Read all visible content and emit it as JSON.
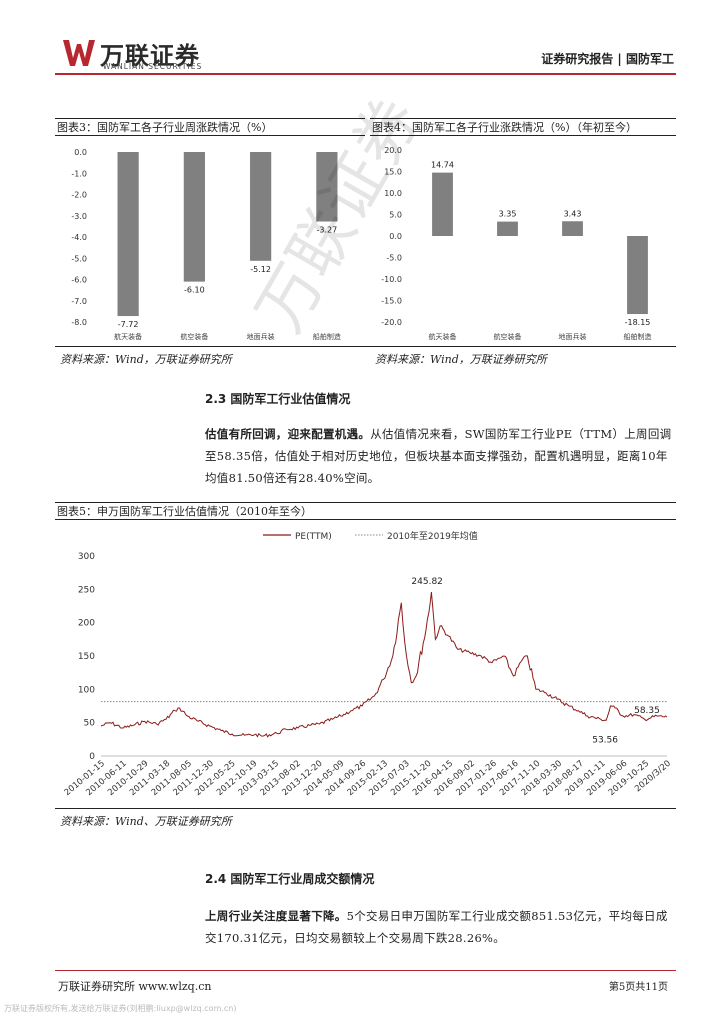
{
  "header": {
    "brand": "万联证券",
    "brand_en": "WANLIAN SECURITIES",
    "report_type": "证券研究报告",
    "sector": "国防军工",
    "accent_color": "#b8262f"
  },
  "figure3": {
    "caption": "图表3：国防军工各子行业周涨跌情况（%）",
    "source": "资料来源：Wind，万联证券研究所",
    "chart_data": {
      "type": "bar",
      "categories": [
        "航天装备",
        "航空装备",
        "地面兵装",
        "船舶制造"
      ],
      "values": [
        -7.72,
        -6.1,
        -5.12,
        -3.27
      ],
      "value_labels": [
        "-7.72",
        "-6.10",
        "-5.12",
        "-3.27"
      ],
      "ylim": [
        -8.0,
        0.0
      ],
      "yticks": [
        "0.0",
        "-1.0",
        "-2.0",
        "-3.0",
        "-4.0",
        "-5.0",
        "-6.0",
        "-7.0",
        "-8.0"
      ],
      "bar_color": "#808080"
    }
  },
  "figure4": {
    "caption": "图表4：国防军工各子行业涨跌情况（%）（年初至今）",
    "source": "资料来源：Wind，万联证券研究所",
    "chart_data": {
      "type": "bar",
      "categories": [
        "航天装备",
        "航空装备",
        "地面兵装",
        "船舶制造"
      ],
      "values": [
        14.74,
        3.35,
        3.43,
        -18.15
      ],
      "value_labels": [
        "14.74",
        "3.35",
        "3.43",
        "-18.15"
      ],
      "ylim": [
        -20.0,
        20.0
      ],
      "yticks": [
        "20.0",
        "15.0",
        "10.0",
        "5.0",
        "0.0",
        "-5.0",
        "-10.0",
        "-15.0",
        "-20.0"
      ],
      "bar_color": "#808080"
    }
  },
  "section23": {
    "title": "2.3 国防军工行业估值情况",
    "lead": "估值有所回调，迎来配置机遇。",
    "body": "从估值情况来看，SW国防军工行业PE（TTM）上周回调至58.35倍，估值处于相对历史地位，但板块基本面支撑强劲，配置机遇明显，距离10年均值81.50倍还有28.40%空间。"
  },
  "figure5": {
    "caption": "图表5：申万国防军工行业估值情况（2010年至今）",
    "source": "资料来源：Wind、万联证券研究所",
    "chart_data": {
      "type": "line",
      "series": [
        {
          "name": "PE(TTM)",
          "color": "#8b1a1a"
        },
        {
          "name": "2010年至2019年均值",
          "color": "#888888"
        }
      ],
      "mean_value": 81.5,
      "ylim": [
        0,
        300
      ],
      "yticks": [
        "0",
        "50",
        "100",
        "150",
        "200",
        "250",
        "300"
      ],
      "x_tick_labels": [
        "2010-01-15",
        "2010-06-11",
        "2010-10-29",
        "2011-03-18",
        "2011-08-05",
        "2011-12-30",
        "2012-05-25",
        "2012-10-19",
        "2013-03-15",
        "2013-08-02",
        "2013-12-20",
        "2014-05-09",
        "2014-09-26",
        "2015-02-13",
        "2015-07-03",
        "2015-11-20",
        "2016-04-15",
        "2016-09-02",
        "2017-01-26",
        "2017-06-16",
        "2017-11-10",
        "2018-03-30",
        "2018-08-17",
        "2019-01-11",
        "2019-06-06",
        "2019-10-25",
        "2020/3/20"
      ],
      "pe_points": [
        [
          "2010-01-15",
          45
        ],
        [
          "2010-03-15",
          50
        ],
        [
          "2010-06-11",
          42
        ],
        [
          "2010-08-15",
          46
        ],
        [
          "2010-10-29",
          52
        ],
        [
          "2011-01-15",
          48
        ],
        [
          "2011-03-18",
          55
        ],
        [
          "2011-05-15",
          68
        ],
        [
          "2011-06-15",
          72
        ],
        [
          "2011-08-05",
          60
        ],
        [
          "2011-10-15",
          52
        ],
        [
          "2011-12-30",
          45
        ],
        [
          "2012-03-15",
          38
        ],
        [
          "2012-05-25",
          33
        ],
        [
          "2012-08-15",
          31
        ],
        [
          "2012-10-19",
          32
        ],
        [
          "2012-12-15",
          30
        ],
        [
          "2013-03-15",
          34
        ],
        [
          "2013-05-15",
          40
        ],
        [
          "2013-08-02",
          42
        ],
        [
          "2013-10-15",
          46
        ],
        [
          "2013-12-20",
          48
        ],
        [
          "2014-03-15",
          55
        ],
        [
          "2014-05-09",
          60
        ],
        [
          "2014-07-15",
          68
        ],
        [
          "2014-09-26",
          75
        ],
        [
          "2014-12-15",
          90
        ],
        [
          "2015-02-13",
          115
        ],
        [
          "2015-04-15",
          150
        ],
        [
          "2015-06-10",
          230
        ],
        [
          "2015-07-03",
          170
        ],
        [
          "2015-08-15",
          110
        ],
        [
          "2015-09-15",
          120
        ],
        [
          "2015-11-20",
          190
        ],
        [
          "2015-12-25",
          245.82
        ],
        [
          "2016-01-20",
          175
        ],
        [
          "2016-02-20",
          195
        ],
        [
          "2016-04-15",
          180
        ],
        [
          "2016-06-15",
          160
        ],
        [
          "2016-09-02",
          155
        ],
        [
          "2016-11-15",
          150
        ],
        [
          "2017-01-26",
          140
        ],
        [
          "2017-04-15",
          150
        ],
        [
          "2017-06-16",
          120
        ],
        [
          "2017-08-15",
          145
        ],
        [
          "2017-09-15",
          150
        ],
        [
          "2017-11-10",
          100
        ],
        [
          "2018-01-15",
          95
        ],
        [
          "2018-03-30",
          85
        ],
        [
          "2018-06-15",
          75
        ],
        [
          "2018-08-17",
          68
        ],
        [
          "2018-10-15",
          60
        ],
        [
          "2019-01-11",
          55
        ],
        [
          "2019-02-15",
          53.56
        ],
        [
          "2019-03-15",
          75
        ],
        [
          "2019-04-15",
          72
        ],
        [
          "2019-06-06",
          60
        ],
        [
          "2019-08-15",
          62
        ],
        [
          "2019-10-25",
          55
        ],
        [
          "2020-01-15",
          60
        ],
        [
          "2020-03-20",
          58.35
        ]
      ],
      "annotations": [
        "245.82",
        "53.56",
        "58.35"
      ]
    }
  },
  "section24": {
    "title": "2.4 国防军工行业周成交额情况",
    "lead": "上周行业关注度显著下降。",
    "body": "5个交易日申万国防军工行业成交额851.53亿元，平均每日成交170.31亿元，日均交易额较上个交易周下跌28.26%。"
  },
  "footer": {
    "left": "万联证券研究所 www.wlzq.cn",
    "right": "第5页共11页",
    "watermark_text": "万联证券版权所有,发送给万联证券(刘相鹏:liuxp@wlzq.com.cn)"
  },
  "watermark": "万联证券"
}
